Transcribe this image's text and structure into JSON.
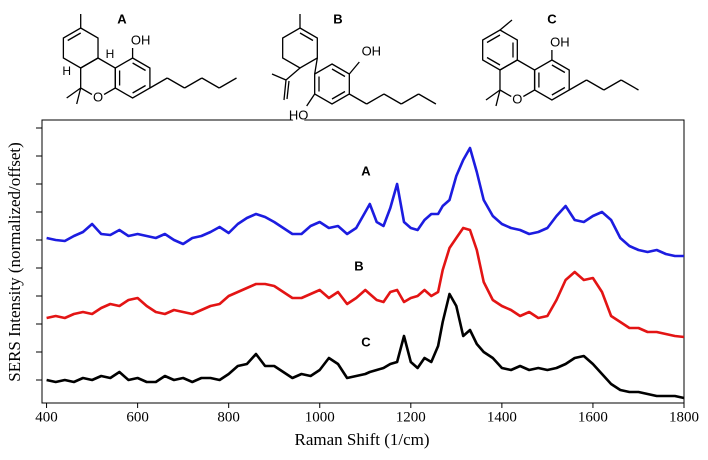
{
  "chart_data": {
    "type": "line",
    "xlabel": "Raman Shift (1/cm)",
    "ylabel": "SERS Intensity (normalized/offset)",
    "xlim": [
      390,
      1800
    ],
    "xticks": [
      400,
      600,
      800,
      1000,
      1200,
      1400,
      1600,
      1800
    ],
    "ylim": [
      0,
      283
    ],
    "yticks": [
      23,
      51,
      79,
      107,
      135,
      163,
      191,
      219,
      247,
      275
    ],
    "x": [
      400,
      420,
      440,
      460,
      480,
      500,
      520,
      540,
      560,
      580,
      600,
      620,
      640,
      660,
      680,
      700,
      720,
      740,
      760,
      780,
      800,
      820,
      840,
      860,
      880,
      900,
      920,
      940,
      960,
      980,
      1000,
      1020,
      1040,
      1060,
      1080,
      1100,
      1110,
      1125,
      1140,
      1155,
      1170,
      1185,
      1200,
      1215,
      1230,
      1245,
      1260,
      1270,
      1285,
      1300,
      1315,
      1330,
      1345,
      1360,
      1380,
      1400,
      1420,
      1440,
      1460,
      1480,
      1500,
      1520,
      1540,
      1560,
      1580,
      1600,
      1620,
      1640,
      1660,
      1680,
      1700,
      1720,
      1740,
      1760,
      1780,
      1800
    ],
    "series": [
      {
        "name": "A",
        "color": "#1c1ce0",
        "values": [
          165,
          163,
          162,
          167,
          171,
          179,
          169,
          168,
          173,
          167,
          169,
          167,
          165,
          169,
          163,
          159,
          165,
          167,
          171,
          176,
          170,
          179,
          185,
          189,
          186,
          181,
          175,
          169,
          169,
          177,
          181,
          175,
          177,
          169,
          175,
          191,
          199,
          181,
          177,
          195,
          219,
          181,
          175,
          173,
          183,
          189,
          189,
          197,
          203,
          227,
          243,
          255,
          231,
          203,
          187,
          179,
          175,
          173,
          169,
          171,
          175,
          187,
          197,
          183,
          181,
          187,
          191,
          183,
          165,
          157,
          153,
          151,
          153,
          149,
          147,
          147
        ]
      },
      {
        "name": "B",
        "color": "#e31414",
        "values": [
          85,
          87,
          85,
          89,
          91,
          89,
          95,
          99,
          97,
          103,
          105,
          97,
          91,
          89,
          93,
          91,
          89,
          93,
          97,
          99,
          107,
          111,
          115,
          119,
          119,
          117,
          111,
          105,
          105,
          109,
          113,
          105,
          111,
          99,
          105,
          113,
          109,
          103,
          101,
          111,
          113,
          101,
          105,
          107,
          113,
          107,
          111,
          133,
          155,
          165,
          175,
          173,
          153,
          121,
          103,
          97,
          93,
          87,
          91,
          85,
          87,
          103,
          123,
          131,
          123,
          125,
          111,
          87,
          81,
          75,
          75,
          71,
          71,
          69,
          67,
          66
        ]
      },
      {
        "name": "C",
        "color": "#000000",
        "values": [
          23,
          21,
          23,
          21,
          25,
          23,
          27,
          25,
          31,
          23,
          25,
          21,
          21,
          27,
          23,
          25,
          21,
          25,
          25,
          23,
          29,
          37,
          39,
          49,
          37,
          37,
          31,
          25,
          29,
          27,
          33,
          45,
          39,
          25,
          27,
          29,
          31,
          33,
          35,
          39,
          41,
          67,
          41,
          35,
          45,
          41,
          57,
          81,
          109,
          97,
          67,
          73,
          59,
          51,
          45,
          35,
          33,
          37,
          33,
          35,
          33,
          35,
          39,
          45,
          47,
          39,
          29,
          19,
          13,
          11,
          11,
          9,
          7,
          7,
          7,
          5
        ]
      }
    ]
  },
  "structures": [
    {
      "label": "A",
      "atoms": [
        "OH",
        "H",
        "H",
        "O"
      ]
    },
    {
      "label": "B",
      "atoms": [
        "OH",
        "HO"
      ]
    },
    {
      "label": "C",
      "atoms": [
        "OH",
        "O"
      ]
    }
  ]
}
